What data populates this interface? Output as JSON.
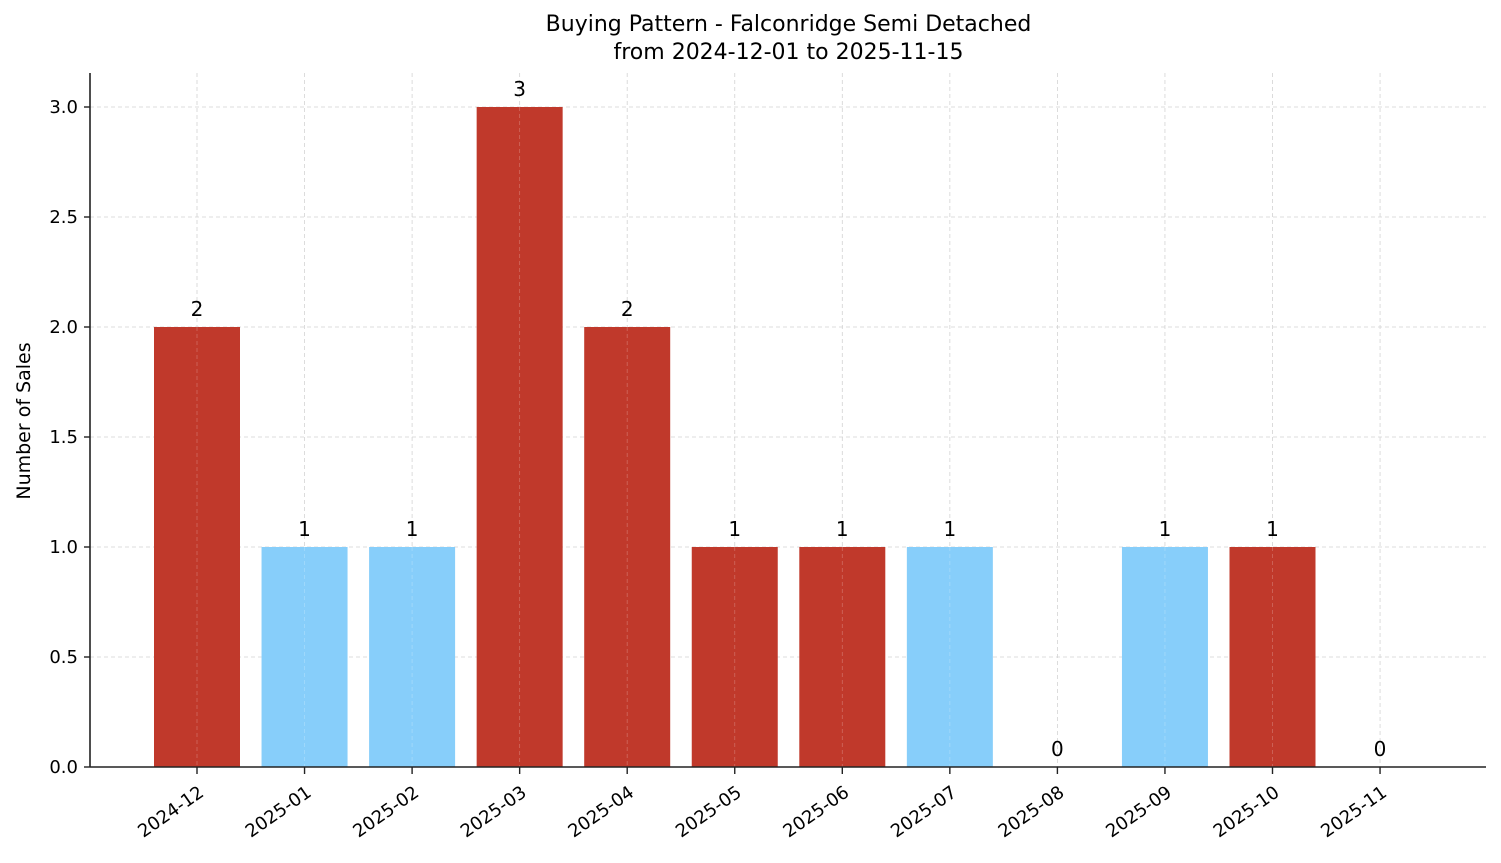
{
  "chart_data": {
    "type": "bar",
    "title": "Buying Pattern - Falconridge Semi Detached",
    "subtitle": "from 2024-12-01 to 2025-11-15",
    "xlabel": "",
    "ylabel": "Number of Sales",
    "categories": [
      "2024-12",
      "2025-01",
      "2025-02",
      "2025-03",
      "2025-04",
      "2025-05",
      "2025-06",
      "2025-07",
      "2025-08",
      "2025-09",
      "2025-10",
      "2025-11"
    ],
    "values": [
      2,
      1,
      1,
      3,
      2,
      1,
      1,
      1,
      0,
      1,
      1,
      0
    ],
    "bar_colors": [
      "#c0392b",
      "#87cefa",
      "#87cefa",
      "#c0392b",
      "#c0392b",
      "#c0392b",
      "#c0392b",
      "#87cefa",
      "#87cefa",
      "#87cefa",
      "#c0392b",
      "#87cefa"
    ],
    "data_labels": [
      "2",
      "1",
      "1",
      "3",
      "2",
      "1",
      "1",
      "1",
      "0",
      "1",
      "1",
      "0"
    ],
    "yticks": [
      "0.0",
      "0.5",
      "1.0",
      "1.5",
      "2.0",
      "2.5",
      "3.0"
    ],
    "ylim": [
      0,
      3.15
    ],
    "grid": true,
    "legend": null
  },
  "colors": {
    "high": "#c0392b",
    "low": "#87cefa",
    "grid": "#d3d3d3",
    "axis": "#222222"
  }
}
